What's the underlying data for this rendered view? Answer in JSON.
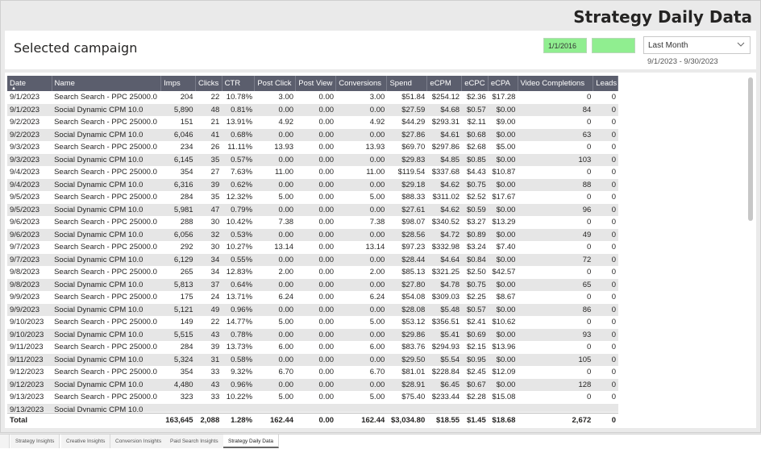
{
  "header": {
    "title": "Strategy Daily Data"
  },
  "filters": {
    "selected_label": "Selected campaign",
    "start_date": "1/1/2016",
    "end_date": "",
    "period": "Last Month",
    "range": "9/1/2023 - 9/30/2023"
  },
  "columns": [
    "Date",
    "Name",
    "Imps",
    "Clicks",
    "CTR",
    "Post Click",
    "Post View",
    "Conversions",
    "Spend",
    "eCPM",
    "eCPC",
    "eCPA",
    "Video Completions",
    "Leads"
  ],
  "rows": [
    [
      "9/1/2023",
      "Search Search - PPC 25000.0",
      "204",
      "22",
      "10.78%",
      "3.00",
      "0.00",
      "3.00",
      "$51.84",
      "$254.12",
      "$2.36",
      "$17.28",
      "0",
      "0"
    ],
    [
      "9/1/2023",
      "Social Dynamic CPM 10.0",
      "5,890",
      "48",
      "0.81%",
      "0.00",
      "0.00",
      "0.00",
      "$27.59",
      "$4.68",
      "$0.57",
      "$0.00",
      "84",
      "0"
    ],
    [
      "9/2/2023",
      "Search Search - PPC 25000.0",
      "151",
      "21",
      "13.91%",
      "4.92",
      "0.00",
      "4.92",
      "$44.29",
      "$293.31",
      "$2.11",
      "$9.00",
      "0",
      "0"
    ],
    [
      "9/2/2023",
      "Social Dynamic CPM 10.0",
      "6,046",
      "41",
      "0.68%",
      "0.00",
      "0.00",
      "0.00",
      "$27.86",
      "$4.61",
      "$0.68",
      "$0.00",
      "63",
      "0"
    ],
    [
      "9/3/2023",
      "Search Search - PPC 25000.0",
      "234",
      "26",
      "11.11%",
      "13.93",
      "0.00",
      "13.93",
      "$69.70",
      "$297.86",
      "$2.68",
      "$5.00",
      "0",
      "0"
    ],
    [
      "9/3/2023",
      "Social Dynamic CPM 10.0",
      "6,145",
      "35",
      "0.57%",
      "0.00",
      "0.00",
      "0.00",
      "$29.83",
      "$4.85",
      "$0.85",
      "$0.00",
      "103",
      "0"
    ],
    [
      "9/4/2023",
      "Search Search - PPC 25000.0",
      "354",
      "27",
      "7.63%",
      "11.00",
      "0.00",
      "11.00",
      "$119.54",
      "$337.68",
      "$4.43",
      "$10.87",
      "0",
      "0"
    ],
    [
      "9/4/2023",
      "Social Dynamic CPM 10.0",
      "6,316",
      "39",
      "0.62%",
      "0.00",
      "0.00",
      "0.00",
      "$29.18",
      "$4.62",
      "$0.75",
      "$0.00",
      "88",
      "0"
    ],
    [
      "9/5/2023",
      "Search Search - PPC 25000.0",
      "284",
      "35",
      "12.32%",
      "5.00",
      "0.00",
      "5.00",
      "$88.33",
      "$311.02",
      "$2.52",
      "$17.67",
      "0",
      "0"
    ],
    [
      "9/5/2023",
      "Social Dynamic CPM 10.0",
      "5,981",
      "47",
      "0.79%",
      "0.00",
      "0.00",
      "0.00",
      "$27.61",
      "$4.62",
      "$0.59",
      "$0.00",
      "96",
      "0"
    ],
    [
      "9/6/2023",
      "Search Search - PPC 25000.0",
      "288",
      "30",
      "10.42%",
      "7.38",
      "0.00",
      "7.38",
      "$98.07",
      "$340.52",
      "$3.27",
      "$13.29",
      "0",
      "0"
    ],
    [
      "9/6/2023",
      "Social Dynamic CPM 10.0",
      "6,056",
      "32",
      "0.53%",
      "0.00",
      "0.00",
      "0.00",
      "$28.56",
      "$4.72",
      "$0.89",
      "$0.00",
      "49",
      "0"
    ],
    [
      "9/7/2023",
      "Search Search - PPC 25000.0",
      "292",
      "30",
      "10.27%",
      "13.14",
      "0.00",
      "13.14",
      "$97.23",
      "$332.98",
      "$3.24",
      "$7.40",
      "0",
      "0"
    ],
    [
      "9/7/2023",
      "Social Dynamic CPM 10.0",
      "6,129",
      "34",
      "0.55%",
      "0.00",
      "0.00",
      "0.00",
      "$28.44",
      "$4.64",
      "$0.84",
      "$0.00",
      "72",
      "0"
    ],
    [
      "9/8/2023",
      "Search Search - PPC 25000.0",
      "265",
      "34",
      "12.83%",
      "2.00",
      "0.00",
      "2.00",
      "$85.13",
      "$321.25",
      "$2.50",
      "$42.57",
      "0",
      "0"
    ],
    [
      "9/8/2023",
      "Social Dynamic CPM 10.0",
      "5,813",
      "37",
      "0.64%",
      "0.00",
      "0.00",
      "0.00",
      "$27.80",
      "$4.78",
      "$0.75",
      "$0.00",
      "65",
      "0"
    ],
    [
      "9/9/2023",
      "Search Search - PPC 25000.0",
      "175",
      "24",
      "13.71%",
      "6.24",
      "0.00",
      "6.24",
      "$54.08",
      "$309.03",
      "$2.25",
      "$8.67",
      "0",
      "0"
    ],
    [
      "9/9/2023",
      "Social Dynamic CPM 10.0",
      "5,121",
      "49",
      "0.96%",
      "0.00",
      "0.00",
      "0.00",
      "$28.08",
      "$5.48",
      "$0.57",
      "$0.00",
      "86",
      "0"
    ],
    [
      "9/10/2023",
      "Search Search - PPC 25000.0",
      "149",
      "22",
      "14.77%",
      "5.00",
      "0.00",
      "5.00",
      "$53.12",
      "$356.51",
      "$2.41",
      "$10.62",
      "0",
      "0"
    ],
    [
      "9/10/2023",
      "Social Dynamic CPM 10.0",
      "5,515",
      "43",
      "0.78%",
      "0.00",
      "0.00",
      "0.00",
      "$29.86",
      "$5.41",
      "$0.69",
      "$0.00",
      "93",
      "0"
    ],
    [
      "9/11/2023",
      "Search Search - PPC 25000.0",
      "284",
      "39",
      "13.73%",
      "6.00",
      "0.00",
      "6.00",
      "$83.76",
      "$294.93",
      "$2.15",
      "$13.96",
      "0",
      "0"
    ],
    [
      "9/11/2023",
      "Social Dynamic CPM 10.0",
      "5,324",
      "31",
      "0.58%",
      "0.00",
      "0.00",
      "0.00",
      "$29.50",
      "$5.54",
      "$0.95",
      "$0.00",
      "105",
      "0"
    ],
    [
      "9/12/2023",
      "Search Search - PPC 25000.0",
      "354",
      "33",
      "9.32%",
      "6.70",
      "0.00",
      "6.70",
      "$81.01",
      "$228.84",
      "$2.45",
      "$12.09",
      "0",
      "0"
    ],
    [
      "9/12/2023",
      "Social Dynamic CPM 10.0",
      "4,480",
      "43",
      "0.96%",
      "0.00",
      "0.00",
      "0.00",
      "$28.91",
      "$6.45",
      "$0.67",
      "$0.00",
      "128",
      "0"
    ],
    [
      "9/13/2023",
      "Search Search - PPC 25000.0",
      "323",
      "33",
      "10.22%",
      "5.00",
      "0.00",
      "5.00",
      "$75.40",
      "$233.44",
      "$2.28",
      "$15.08",
      "0",
      "0"
    ],
    [
      "9/13/2023",
      "Social Dynamic CPM 10.0",
      "",
      "",
      "",
      "",
      "",
      "",
      "",
      "",
      "",
      "",
      "",
      ""
    ]
  ],
  "totals": [
    "Total",
    "",
    "163,645",
    "2,088",
    "1.28%",
    "162.44",
    "0.00",
    "162.44",
    "$3,034.80",
    "$18.55",
    "$1.45",
    "$18.68",
    "2,672",
    "0"
  ],
  "tabs": [
    "Strategy Insights",
    "Creative Insights",
    "Conversion Insights",
    "Paid Search Insights",
    "Strategy Daily Data"
  ],
  "active_tab": 4,
  "colors": {
    "header_bg": "#5b5e6d",
    "date_fill": "#90ee90",
    "stripe": "#e6e6e6"
  }
}
